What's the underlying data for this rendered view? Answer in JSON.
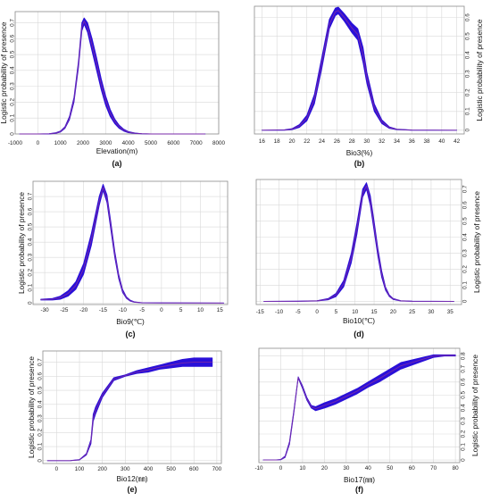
{
  "styles": {
    "band_color": "#2a10d8",
    "mean_color": "#7a2aa8",
    "grid_color": "#d9d9d9",
    "frame_color": "#8c8c8c"
  },
  "chart_data": [
    {
      "id": "a",
      "type": "line",
      "caption": "(a)",
      "xlabel": "Elevation(m)",
      "ylabel": "Logistic probability of presence",
      "ylabel_side": "left",
      "xlim": [
        -1000,
        8000
      ],
      "ylim": [
        0,
        0.77
      ],
      "xticks": [
        -1000,
        0,
        1000,
        2000,
        3000,
        4000,
        5000,
        6000,
        7000,
        8000
      ],
      "yticks": [
        0,
        0.1,
        0.2,
        0.3,
        0.4,
        0.5,
        0.6,
        0.7
      ],
      "grid": true,
      "series": [
        {
          "x": [
            -800,
            0,
            500,
            800,
            1000,
            1200,
            1400,
            1600,
            1800,
            1950,
            2050,
            2200,
            2400,
            2600,
            2800,
            3000,
            3200,
            3400,
            3600,
            3800,
            4000,
            4300,
            4600,
            5000,
            6000,
            7400
          ],
          "lower": [
            0,
            0,
            0,
            0.004,
            0.012,
            0.035,
            0.09,
            0.2,
            0.42,
            0.65,
            0.69,
            0.64,
            0.52,
            0.4,
            0.28,
            0.18,
            0.11,
            0.065,
            0.035,
            0.018,
            0.008,
            0.003,
            0.001,
            0,
            0,
            0
          ],
          "upper": [
            0,
            0,
            0.002,
            0.008,
            0.018,
            0.045,
            0.11,
            0.23,
            0.46,
            0.7,
            0.73,
            0.7,
            0.6,
            0.48,
            0.35,
            0.24,
            0.155,
            0.095,
            0.055,
            0.03,
            0.015,
            0.006,
            0.002,
            0,
            0,
            0
          ]
        }
      ]
    },
    {
      "id": "b",
      "type": "line",
      "caption": "(b)",
      "xlabel": "Bio3(%)",
      "ylabel": "Logistic probability of presence",
      "ylabel_side": "right",
      "xlim": [
        15,
        43
      ],
      "ylim": [
        -0.02,
        0.66
      ],
      "xticks": [
        16,
        18,
        20,
        22,
        24,
        26,
        28,
        30,
        32,
        34,
        36,
        38,
        40,
        42
      ],
      "yticks": [
        0,
        0.1,
        0.2,
        0.3,
        0.4,
        0.5,
        0.6
      ],
      "grid": true,
      "series": [
        {
          "x": [
            16,
            19,
            20,
            21,
            22,
            23,
            24,
            25,
            25.8,
            26.2,
            27,
            28,
            28.8,
            29.5,
            30,
            31,
            32,
            33,
            34,
            36,
            42
          ],
          "lower": [
            0,
            0,
            0.003,
            0.015,
            0.05,
            0.14,
            0.33,
            0.54,
            0.61,
            0.62,
            0.58,
            0.52,
            0.48,
            0.36,
            0.25,
            0.1,
            0.035,
            0.01,
            0.003,
            0,
            0
          ],
          "upper": [
            0,
            0.002,
            0.008,
            0.03,
            0.08,
            0.19,
            0.39,
            0.59,
            0.65,
            0.655,
            0.62,
            0.57,
            0.54,
            0.44,
            0.31,
            0.14,
            0.055,
            0.018,
            0.006,
            0.001,
            0
          ]
        }
      ]
    },
    {
      "id": "c",
      "type": "line",
      "caption": "(c)",
      "xlabel": "Bio9(℃)",
      "ylabel": "Logistic probability of presence",
      "ylabel_side": "left",
      "xlim": [
        -33,
        17
      ],
      "ylim": [
        -0.01,
        0.8
      ],
      "xticks": [
        -30,
        -25,
        -20,
        -15,
        -10,
        -5,
        0,
        5,
        10,
        15
      ],
      "yticks": [
        0,
        0.1,
        0.2,
        0.3,
        0.4,
        0.5,
        0.6,
        0.7
      ],
      "grid": true,
      "series": [
        {
          "x": [
            -31,
            -28,
            -26,
            -24,
            -22,
            -20,
            -18,
            -16,
            -15,
            -14,
            -13,
            -12,
            -11,
            -10,
            -9,
            -8,
            -7,
            -5,
            0,
            16
          ],
          "lower": [
            0.02,
            0.02,
            0.025,
            0.045,
            0.09,
            0.19,
            0.38,
            0.64,
            0.74,
            0.66,
            0.48,
            0.3,
            0.16,
            0.07,
            0.03,
            0.012,
            0.005,
            0.001,
            0,
            0
          ],
          "upper": [
            0.025,
            0.03,
            0.045,
            0.08,
            0.14,
            0.26,
            0.46,
            0.7,
            0.78,
            0.71,
            0.53,
            0.34,
            0.19,
            0.09,
            0.04,
            0.018,
            0.008,
            0.002,
            0.001,
            0
          ]
        }
      ]
    },
    {
      "id": "d",
      "type": "line",
      "caption": "(d)",
      "xlabel": "Bio10(℃)",
      "ylabel": "Logistic probability of presence",
      "ylabel_side": "right",
      "xlim": [
        -16,
        38
      ],
      "ylim": [
        -0.02,
        0.76
      ],
      "xticks": [
        -15,
        -10,
        -5,
        0,
        5,
        10,
        15,
        20,
        25,
        30,
        35
      ],
      "yticks": [
        0,
        0.1,
        0.2,
        0.3,
        0.4,
        0.5,
        0.6,
        0.7
      ],
      "grid": true,
      "series": [
        {
          "x": [
            -14,
            -5,
            0,
            3,
            5,
            7,
            9,
            10.5,
            12,
            13,
            14,
            15,
            16,
            17,
            18,
            19,
            20,
            22,
            25,
            36
          ],
          "lower": [
            0,
            0,
            0.002,
            0.01,
            0.03,
            0.09,
            0.24,
            0.42,
            0.65,
            0.7,
            0.6,
            0.44,
            0.28,
            0.15,
            0.07,
            0.03,
            0.012,
            0.002,
            0,
            0
          ],
          "upper": [
            0,
            0.001,
            0.004,
            0.018,
            0.05,
            0.13,
            0.3,
            0.49,
            0.7,
            0.74,
            0.66,
            0.5,
            0.33,
            0.19,
            0.09,
            0.04,
            0.018,
            0.004,
            0.001,
            0
          ]
        }
      ]
    },
    {
      "id": "e",
      "type": "line",
      "caption": "(e)",
      "xlabel": "Bio12(㎜)",
      "ylabel": "Logistic probability of presence",
      "ylabel_side": "left",
      "xlim": [
        -60,
        720
      ],
      "ylim": [
        -0.02,
        0.78
      ],
      "xticks": [
        0,
        100,
        200,
        300,
        400,
        500,
        600,
        700
      ],
      "yticks": [
        0,
        0.1,
        0.2,
        0.3,
        0.4,
        0.5,
        0.6,
        0.7
      ],
      "grid": true,
      "series": [
        {
          "x": [
            -40,
            60,
            100,
            130,
            150,
            160,
            170,
            200,
            250,
            300,
            350,
            400,
            450,
            500,
            550,
            600,
            680
          ],
          "lower": [
            0,
            0,
            0.005,
            0.04,
            0.12,
            0.28,
            0.33,
            0.45,
            0.57,
            0.6,
            0.62,
            0.63,
            0.65,
            0.66,
            0.67,
            0.67,
            0.67
          ],
          "upper": [
            0,
            0.001,
            0.008,
            0.05,
            0.15,
            0.33,
            0.38,
            0.48,
            0.59,
            0.61,
            0.64,
            0.66,
            0.68,
            0.7,
            0.72,
            0.73,
            0.73
          ]
        }
      ]
    },
    {
      "id": "f",
      "type": "line",
      "caption": "(f)",
      "xlabel": "Bio17(㎜)",
      "ylabel": "Logistic probability of presence",
      "ylabel_side": "right",
      "xlim": [
        -10,
        82
      ],
      "ylim": [
        -0.02,
        0.86
      ],
      "xticks": [
        -10,
        0,
        10,
        20,
        30,
        40,
        50,
        60,
        70,
        80
      ],
      "yticks": [
        0,
        0.1,
        0.2,
        0.3,
        0.4,
        0.5,
        0.6,
        0.7,
        0.8
      ],
      "grid": true,
      "series": [
        {
          "x": [
            -8,
            -2,
            0,
            2,
            4,
            6,
            8,
            10,
            12,
            14,
            16,
            20,
            25,
            30,
            35,
            40,
            45,
            50,
            55,
            60,
            65,
            70,
            75,
            80
          ],
          "lower": [
            0,
            0,
            0.002,
            0.02,
            0.12,
            0.36,
            0.63,
            0.55,
            0.46,
            0.4,
            0.38,
            0.4,
            0.43,
            0.47,
            0.51,
            0.56,
            0.6,
            0.65,
            0.7,
            0.73,
            0.76,
            0.79,
            0.8,
            0.8
          ],
          "upper": [
            0,
            0.001,
            0.004,
            0.03,
            0.14,
            0.38,
            0.64,
            0.57,
            0.48,
            0.42,
            0.41,
            0.44,
            0.47,
            0.51,
            0.55,
            0.6,
            0.65,
            0.7,
            0.75,
            0.77,
            0.79,
            0.81,
            0.81,
            0.81
          ]
        }
      ]
    }
  ]
}
